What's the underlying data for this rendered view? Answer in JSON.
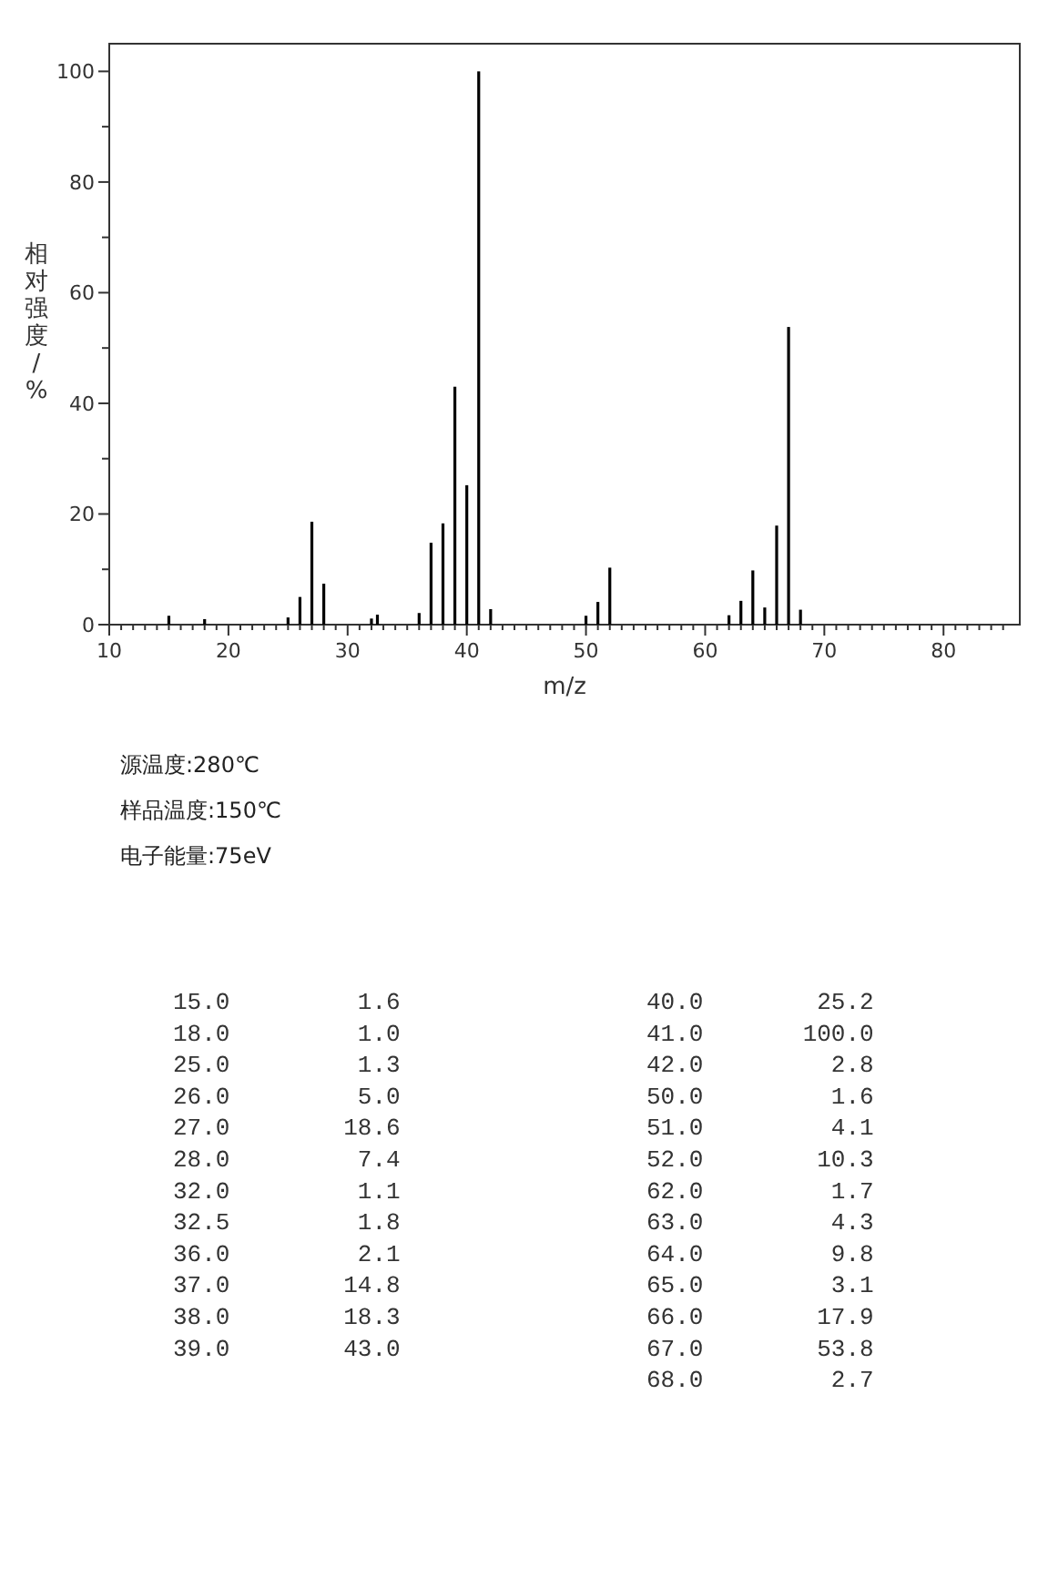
{
  "chart_data": {
    "type": "bar",
    "xlabel": "m/z",
    "ylabel": "相对强度/%",
    "x": [
      15,
      18,
      25,
      26,
      27,
      28,
      32,
      32.5,
      36,
      37,
      38,
      39,
      40,
      41,
      42,
      50,
      51,
      52,
      62,
      63,
      64,
      65,
      66,
      67,
      68
    ],
    "values": [
      1.6,
      1.0,
      1.3,
      5.0,
      18.6,
      7.4,
      1.1,
      1.8,
      2.1,
      14.8,
      18.3,
      43.0,
      25.2,
      100.0,
      2.8,
      1.6,
      4.1,
      10.3,
      1.7,
      4.3,
      9.8,
      3.1,
      17.9,
      53.8,
      2.7
    ],
    "color": "#000000",
    "xlim": [
      10,
      86.4
    ],
    "xticks": [
      10,
      {
        "value": 11,
        "label": null
      },
      {
        "value": 12,
        "label": null
      },
      {
        "value": 13,
        "label": null
      },
      {
        "value": 14,
        "label": null
      },
      {
        "value": 15,
        "label": null
      },
      {
        "value": 16,
        "label": null
      },
      {
        "value": 17,
        "label": null
      },
      {
        "value": 18,
        "label": null
      },
      {
        "value": 19,
        "label": null
      },
      20,
      {
        "value": 21,
        "label": null
      },
      {
        "value": 22,
        "label": null
      },
      {
        "value": 23,
        "label": null
      },
      {
        "value": 24,
        "label": null
      },
      {
        "value": 25,
        "label": null
      },
      {
        "value": 26,
        "label": null
      },
      {
        "value": 27,
        "label": null
      },
      {
        "value": 28,
        "label": null
      },
      {
        "value": 29,
        "label": null
      },
      30,
      {
        "value": 31,
        "label": null
      },
      {
        "value": 32,
        "label": null
      },
      {
        "value": 33,
        "label": null
      },
      {
        "value": 34,
        "label": null
      },
      {
        "value": 35,
        "label": null
      },
      {
        "value": 36,
        "label": null
      },
      {
        "value": 37,
        "label": null
      },
      {
        "value": 38,
        "label": null
      },
      {
        "value": 39,
        "label": null
      },
      40,
      {
        "value": 41,
        "label": null
      },
      {
        "value": 42,
        "label": null
      },
      {
        "value": 43,
        "label": null
      },
      {
        "value": 44,
        "label": null
      },
      {
        "value": 45,
        "label": null
      },
      {
        "value": 46,
        "label": null
      },
      {
        "value": 47,
        "label": null
      },
      {
        "value": 48,
        "label": null
      },
      {
        "value": 49,
        "label": null
      },
      50,
      {
        "value": 51,
        "label": null
      },
      {
        "value": 52,
        "label": null
      },
      {
        "value": 53,
        "label": null
      },
      {
        "value": 54,
        "label": null
      },
      {
        "value": 55,
        "label": null
      },
      {
        "value": 56,
        "label": null
      },
      {
        "value": 57,
        "label": null
      },
      {
        "value": 58,
        "label": null
      },
      {
        "value": 59,
        "label": null
      },
      60,
      {
        "value": 61,
        "label": null
      },
      {
        "value": 62,
        "label": null
      },
      {
        "value": 63,
        "label": null
      },
      {
        "value": 64,
        "label": null
      },
      {
        "value": 65,
        "label": null
      },
      {
        "value": 66,
        "label": null
      },
      {
        "value": 67,
        "label": null
      },
      {
        "value": 68,
        "label": null
      },
      {
        "value": 69,
        "label": null
      },
      70,
      {
        "value": 71,
        "label": null
      },
      {
        "value": 72,
        "label": null
      },
      {
        "value": 73,
        "label": null
      },
      {
        "value": 74,
        "label": null
      },
      {
        "value": 75,
        "label": null
      },
      {
        "value": 76,
        "label": null
      },
      {
        "value": 77,
        "label": null
      },
      {
        "value": 78,
        "label": null
      },
      {
        "value": 79,
        "label": null
      },
      80,
      {
        "value": 81,
        "label": null
      },
      {
        "value": 82,
        "label": null
      },
      {
        "value": 83,
        "label": null
      },
      {
        "value": 84,
        "label": null
      },
      {
        "value": 85,
        "label": null
      }
    ],
    "ylim": [
      0,
      105
    ],
    "yticks": [
      0,
      {
        "value": 10,
        "label": null
      },
      20,
      {
        "value": 30,
        "label": null
      },
      40,
      {
        "value": 50,
        "label": null
      },
      60,
      {
        "value": 70,
        "label": null
      },
      80,
      {
        "value": 90,
        "label": null
      },
      100
    ],
    "grid": false,
    "annotations": [
      "源温度:280℃",
      "样品温度:150℃",
      "电子能量:75eV",
      "15.0         1.6",
      "18.0         1.0",
      "25.0         1.3",
      "26.0         5.0",
      "27.0        18.6",
      "28.0         7.4",
      "32.0         1.1",
      "32.5         1.8",
      "36.0         2.1",
      "37.0        14.8",
      "38.0        18.3",
      "39.0        43.0",
      "40.0        25.2",
      "41.0       100.0",
      "42.0         2.8",
      "50.0         1.6",
      "51.0         4.1",
      "52.0        10.3",
      "62.0         1.7",
      "63.0         4.3",
      "64.0         9.8",
      "65.0         3.1",
      "66.0        17.9",
      "67.0        53.8",
      "68.0         2.7"
    ]
  }
}
